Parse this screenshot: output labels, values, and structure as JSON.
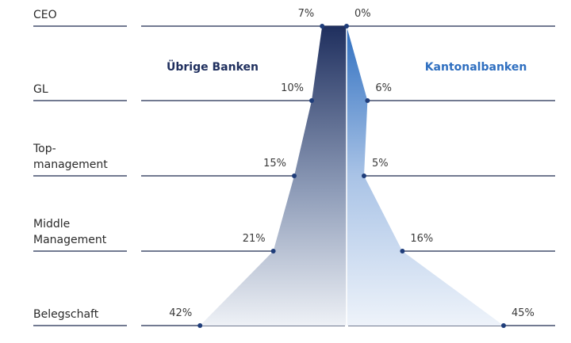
{
  "chart_data": {
    "type": "pyramid",
    "categories": [
      "CEO",
      "GL",
      "Top-\nmanagement",
      "Middle\nManagement",
      "Belegschaft"
    ],
    "series": [
      {
        "name": "Übrige Banken",
        "color": "#1f2f5e",
        "values": [
          7,
          10,
          15,
          21,
          42
        ],
        "value_labels": [
          "7%",
          "10%",
          "15%",
          "21%",
          "42%"
        ]
      },
      {
        "name": "Kantonalbanken",
        "color": "#2f6fc0",
        "values": [
          0,
          6,
          5,
          16,
          45
        ],
        "value_labels": [
          "0%",
          "6%",
          "5%",
          "16%",
          "45%"
        ]
      }
    ]
  }
}
